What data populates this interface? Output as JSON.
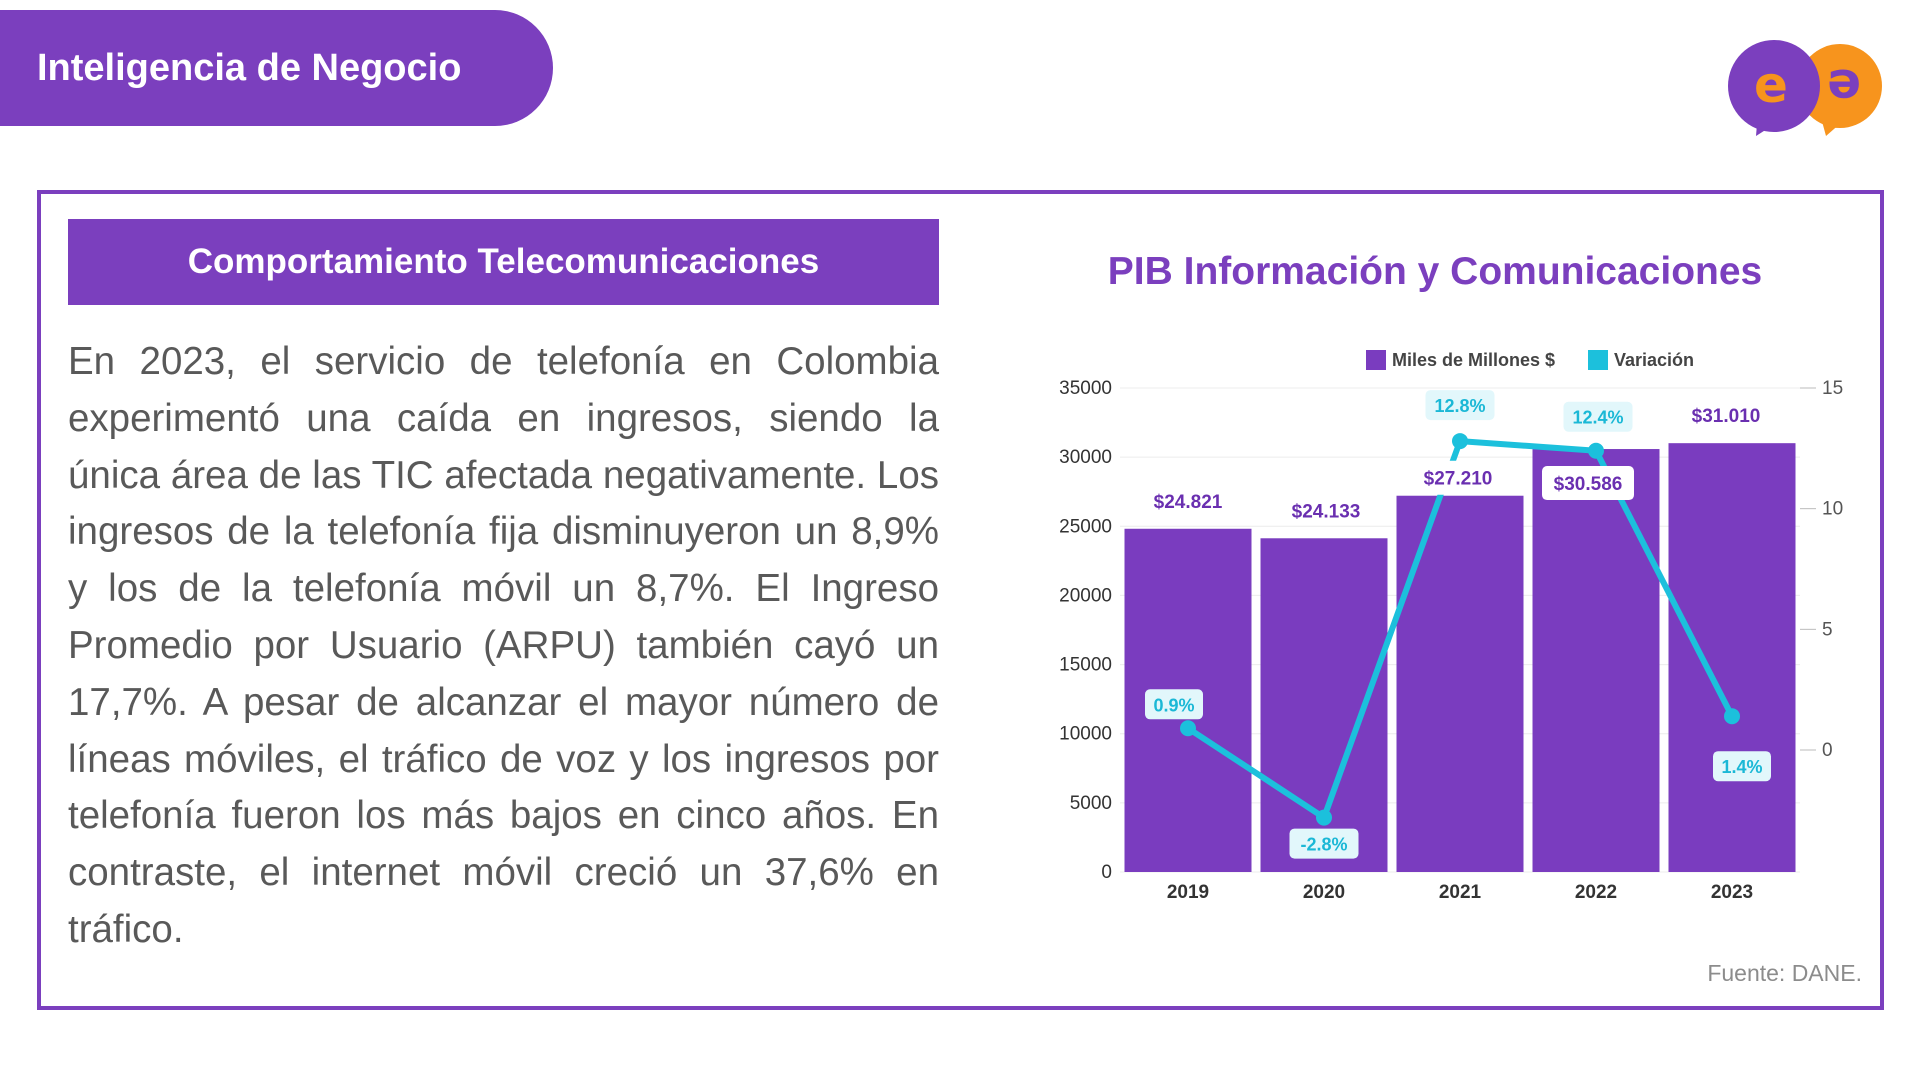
{
  "header": {
    "title": "Inteligencia de Negocio"
  },
  "logo": {
    "icon": "ee-speech-bubbles-logo",
    "letter_left": "e",
    "letter_right": "e"
  },
  "section": {
    "title": "Comportamiento Telecomunicaciones",
    "body": "En 2023, el servicio de telefonía en Colombia experimentó una caída en ingresos, siendo la única área de las TIC afectada negativamente. Los ingresos de la telefonía fija disminuyeron un 8,9% y los de la telefonía móvil un 8,7%. El Ingreso Promedio por Usuario (ARPU) también cayó un 17,7%. A pesar de alcanzar el mayor número de líneas móviles, el tráfico de voz y los ingresos por telefonía fueron los más bajos en cinco años. En contraste, el internet móvil creció un 37,6% en tráfico."
  },
  "source": "Fuente: DANE.",
  "colors": {
    "brand_purple": "#7b3fbe",
    "bar_purple": "#7a3cbf",
    "line_cyan": "#1cc0dc",
    "logo_orange": "#f7941d"
  },
  "chart_data": {
    "type": "bar",
    "title": "PIB Información y Comunicaciones",
    "categories": [
      "2019",
      "2020",
      "2021",
      "2022",
      "2023"
    ],
    "series": [
      {
        "name": "Miles de Millones $",
        "type": "bar",
        "axis": "left",
        "values": [
          24821,
          24133,
          27210,
          30586,
          31010
        ],
        "labels": [
          "$24.821",
          "$24.133",
          "$27.210",
          "$30.586",
          "$31.010"
        ]
      },
      {
        "name": "Variación",
        "type": "line",
        "axis": "right",
        "values": [
          0.9,
          -2.8,
          12.8,
          12.4,
          1.4
        ],
        "labels": [
          "0.9%",
          "-2.8%",
          "12.8%",
          "12.4%",
          "1.4%"
        ]
      }
    ],
    "ylim": [
      0,
      35000
    ],
    "yticks": [
      "0",
      "5000",
      "10000",
      "15000",
      "20000",
      "25000",
      "30000",
      "35000"
    ],
    "y2ticks": [
      "0",
      "5",
      "10",
      "15"
    ],
    "legend_position": "top-right",
    "grid": true
  }
}
